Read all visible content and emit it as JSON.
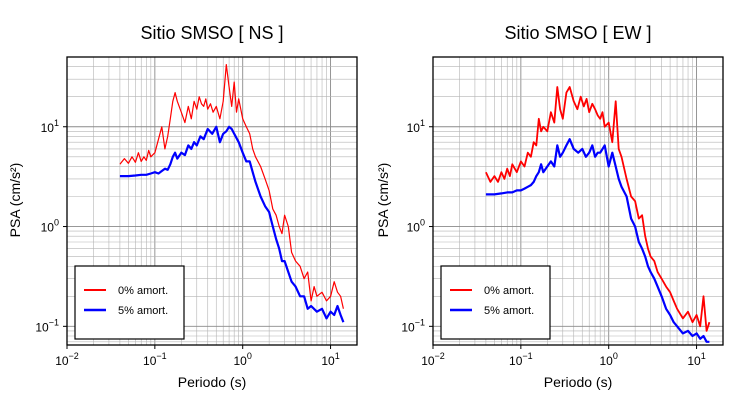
{
  "chart_data": [
    {
      "type": "line",
      "title": "Sitio SMSO [ NS ]",
      "xlabel": "Periodo (s)",
      "ylabel": "PSA (cm/s²)",
      "xscale": "log",
      "yscale": "log",
      "xlim": [
        0.01,
        20
      ],
      "ylim": [
        0.065,
        50
      ],
      "x_ticks": [
        {
          "v": 0.01,
          "b": "10",
          "e": "−2"
        },
        {
          "v": 0.1,
          "b": "10",
          "e": "−1"
        },
        {
          "v": 1,
          "b": "10",
          "e": "0"
        },
        {
          "v": 10,
          "b": "10",
          "e": "1"
        }
      ],
      "y_ticks": [
        {
          "v": 0.1,
          "b": "10",
          "e": "−1"
        },
        {
          "v": 1,
          "b": "10",
          "e": "0"
        },
        {
          "v": 10,
          "b": "10",
          "e": "1"
        }
      ],
      "grid": true,
      "legend": "bottom-left",
      "series": [
        {
          "name": "0% amort.",
          "color": "#ff0000",
          "x": [
            0.04,
            0.045,
            0.05,
            0.055,
            0.06,
            0.065,
            0.07,
            0.075,
            0.08,
            0.085,
            0.09,
            0.1,
            0.11,
            0.12,
            0.13,
            0.14,
            0.15,
            0.16,
            0.17,
            0.18,
            0.2,
            0.22,
            0.24,
            0.26,
            0.28,
            0.3,
            0.32,
            0.34,
            0.36,
            0.38,
            0.4,
            0.43,
            0.46,
            0.5,
            0.55,
            0.6,
            0.65,
            0.7,
            0.75,
            0.8,
            0.85,
            0.9,
            1.0,
            1.1,
            1.2,
            1.3,
            1.4,
            1.6,
            1.8,
            2.0,
            2.2,
            2.4,
            2.6,
            2.8,
            3.0,
            3.3,
            3.6,
            4.0,
            4.5,
            5.0,
            5.5,
            6.0,
            6.5,
            7.0,
            8.0,
            9.0,
            10.0,
            11.0,
            12.0,
            13.0,
            14.0
          ],
          "y": [
            4.2,
            4.8,
            4.3,
            5.0,
            4.4,
            5.5,
            4.5,
            5.0,
            4.6,
            5.8,
            5.0,
            5.5,
            7.5,
            10.0,
            6.0,
            8.0,
            12.0,
            18.0,
            22.0,
            18.0,
            14.0,
            11.0,
            16.0,
            12.0,
            18.0,
            15.0,
            20.0,
            17.0,
            16.0,
            19.0,
            15.0,
            17.0,
            14.0,
            16.0,
            12.0,
            18.0,
            42.0,
            25.0,
            16.0,
            28.0,
            14.0,
            19.0,
            12.0,
            10.0,
            8.5,
            6.0,
            5.0,
            4.0,
            3.0,
            2.3,
            1.5,
            1.3,
            1.0,
            0.85,
            1.3,
            1.0,
            0.55,
            0.45,
            0.4,
            0.3,
            0.35,
            0.18,
            0.25,
            0.2,
            0.22,
            0.18,
            0.2,
            0.28,
            0.22,
            0.2,
            0.15
          ]
        },
        {
          "name": "5% amort.",
          "color": "#0000ff",
          "x": [
            0.04,
            0.05,
            0.06,
            0.07,
            0.08,
            0.09,
            0.1,
            0.11,
            0.12,
            0.13,
            0.14,
            0.15,
            0.16,
            0.17,
            0.18,
            0.2,
            0.22,
            0.24,
            0.26,
            0.28,
            0.3,
            0.33,
            0.36,
            0.4,
            0.45,
            0.5,
            0.55,
            0.6,
            0.65,
            0.7,
            0.75,
            0.8,
            0.9,
            1.0,
            1.1,
            1.2,
            1.3,
            1.4,
            1.6,
            1.8,
            2.0,
            2.2,
            2.4,
            2.6,
            2.8,
            3.0,
            3.3,
            3.6,
            4.0,
            4.5,
            5.0,
            5.5,
            6.0,
            7.0,
            8.0,
            9.0,
            10.0,
            11.0,
            12.0,
            13.0,
            14.0
          ],
          "y": [
            3.2,
            3.2,
            3.25,
            3.3,
            3.3,
            3.4,
            3.5,
            3.4,
            3.6,
            3.8,
            3.7,
            4.2,
            5.0,
            5.5,
            4.8,
            5.5,
            5.2,
            6.5,
            6.0,
            7.0,
            6.5,
            8.0,
            7.5,
            9.5,
            8.5,
            10.0,
            7.0,
            8.5,
            9.0,
            10.0,
            9.5,
            8.5,
            7.0,
            5.5,
            4.5,
            4.5,
            3.5,
            2.8,
            2.0,
            1.6,
            1.4,
            1.0,
            0.75,
            0.6,
            0.45,
            0.45,
            0.35,
            0.28,
            0.25,
            0.2,
            0.2,
            0.15,
            0.16,
            0.14,
            0.15,
            0.12,
            0.14,
            0.13,
            0.16,
            0.13,
            0.11
          ]
        }
      ]
    },
    {
      "type": "line",
      "title": "Sitio SMSO [ EW ]",
      "xlabel": "Periodo (s)",
      "ylabel": "PSA (cm/s²)",
      "xscale": "log",
      "yscale": "log",
      "xlim": [
        0.01,
        20
      ],
      "ylim": [
        0.065,
        50
      ],
      "x_ticks": [
        {
          "v": 0.01,
          "b": "10",
          "e": "−2"
        },
        {
          "v": 0.1,
          "b": "10",
          "e": "−1"
        },
        {
          "v": 1,
          "b": "10",
          "e": "0"
        },
        {
          "v": 10,
          "b": "10",
          "e": "1"
        }
      ],
      "y_ticks": [
        {
          "v": 0.1,
          "b": "10",
          "e": "−1"
        },
        {
          "v": 1,
          "b": "10",
          "e": "0"
        },
        {
          "v": 10,
          "b": "10",
          "e": "1"
        }
      ],
      "grid": true,
      "legend": "bottom-left",
      "series": [
        {
          "name": "0% amort.",
          "color": "#ff0000",
          "x": [
            0.04,
            0.045,
            0.05,
            0.055,
            0.06,
            0.065,
            0.07,
            0.075,
            0.08,
            0.09,
            0.1,
            0.11,
            0.12,
            0.13,
            0.14,
            0.15,
            0.16,
            0.17,
            0.18,
            0.2,
            0.22,
            0.24,
            0.26,
            0.28,
            0.3,
            0.33,
            0.36,
            0.4,
            0.44,
            0.48,
            0.52,
            0.56,
            0.6,
            0.65,
            0.7,
            0.75,
            0.8,
            0.85,
            0.9,
            1.0,
            1.1,
            1.2,
            1.3,
            1.4,
            1.6,
            1.8,
            2.0,
            2.2,
            2.4,
            2.6,
            2.8,
            3.0,
            3.3,
            3.6,
            4.0,
            4.5,
            5.0,
            5.5,
            6.0,
            7.0,
            8.0,
            9.0,
            10.0,
            11.0,
            12.0,
            13.0,
            14.0
          ],
          "y": [
            3.5,
            2.8,
            3.2,
            2.8,
            3.5,
            3.0,
            3.8,
            3.2,
            4.2,
            3.5,
            4.5,
            4.0,
            5.5,
            5.0,
            7.0,
            6.5,
            12.0,
            9.0,
            10.0,
            9.0,
            14.0,
            11.0,
            25.0,
            15.0,
            12.0,
            22.0,
            25.0,
            18.0,
            15.0,
            20.0,
            16.0,
            19.0,
            14.0,
            17.0,
            15.0,
            13.0,
            12.0,
            14.0,
            10.0,
            11.0,
            7.0,
            18.0,
            6.0,
            5.0,
            3.0,
            2.0,
            1.8,
            1.2,
            1.3,
            0.8,
            0.6,
            0.5,
            0.45,
            0.35,
            0.3,
            0.25,
            0.22,
            0.18,
            0.15,
            0.12,
            0.14,
            0.11,
            0.13,
            0.1,
            0.2,
            0.09,
            0.11
          ]
        },
        {
          "name": "5% amort.",
          "color": "#0000ff",
          "x": [
            0.04,
            0.05,
            0.06,
            0.07,
            0.08,
            0.09,
            0.1,
            0.11,
            0.12,
            0.13,
            0.14,
            0.15,
            0.16,
            0.17,
            0.18,
            0.2,
            0.22,
            0.24,
            0.26,
            0.28,
            0.3,
            0.33,
            0.36,
            0.4,
            0.45,
            0.5,
            0.55,
            0.6,
            0.65,
            0.7,
            0.75,
            0.8,
            0.9,
            1.0,
            1.1,
            1.2,
            1.3,
            1.4,
            1.6,
            1.8,
            2.0,
            2.2,
            2.4,
            2.6,
            2.8,
            3.0,
            3.3,
            3.6,
            4.0,
            4.5,
            5.0,
            5.5,
            6.0,
            7.0,
            8.0,
            9.0,
            10.0,
            11.0,
            12.0,
            13.0,
            14.0
          ],
          "y": [
            2.1,
            2.1,
            2.15,
            2.2,
            2.2,
            2.3,
            2.3,
            2.4,
            2.5,
            2.6,
            2.8,
            3.2,
            3.5,
            4.2,
            3.5,
            4.0,
            4.5,
            4.0,
            6.5,
            5.0,
            5.5,
            6.5,
            7.5,
            6.0,
            5.5,
            6.0,
            5.0,
            5.5,
            6.5,
            5.0,
            5.5,
            5.5,
            6.5,
            4.0,
            5.5,
            4.0,
            3.0,
            2.5,
            2.0,
            1.2,
            1.0,
            0.7,
            0.6,
            0.5,
            0.4,
            0.35,
            0.3,
            0.25,
            0.2,
            0.15,
            0.13,
            0.11,
            0.1,
            0.085,
            0.09,
            0.08,
            0.085,
            0.075,
            0.08,
            0.07,
            0.07
          ]
        }
      ]
    }
  ]
}
